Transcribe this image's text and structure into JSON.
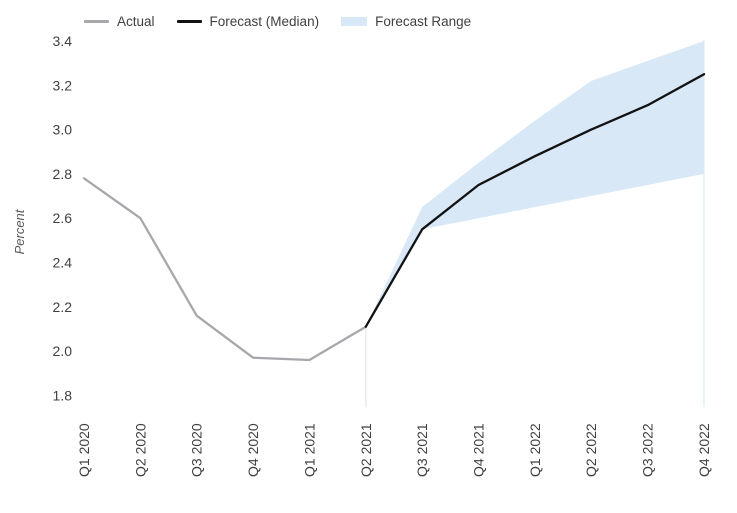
{
  "chart_data": {
    "type": "line",
    "title": "",
    "ylabel": "Percent",
    "categories": [
      "Q1 2020",
      "Q2 2020",
      "Q3 2020",
      "Q4 2020",
      "Q1 2021",
      "Q2 2021",
      "Q3 2021",
      "Q4 2021",
      "Q1 2022",
      "Q2 2022",
      "Q3 2022",
      "Q4 2022"
    ],
    "ylim": [
      1.8,
      3.4
    ],
    "yticks": [
      "1.8",
      "2.0",
      "2.2",
      "2.4",
      "2.6",
      "2.8",
      "3.0",
      "3.2",
      "3.4"
    ],
    "grid": "none",
    "forecast_start_index": 5,
    "series": [
      {
        "name": "Actual",
        "color": "#a6a8ab",
        "values": [
          2.78,
          2.6,
          2.16,
          1.97,
          1.96,
          2.11,
          null,
          null,
          null,
          null,
          null,
          null
        ]
      },
      {
        "name": "Forecast (Median)",
        "color": "#121212",
        "values": [
          null,
          null,
          null,
          null,
          null,
          2.11,
          2.55,
          2.75,
          2.88,
          3.0,
          3.11,
          3.25
        ]
      }
    ],
    "band": {
      "name": "Forecast Range",
      "color": "#d8e8f6",
      "upper": [
        null,
        null,
        null,
        null,
        null,
        2.11,
        2.65,
        2.85,
        3.04,
        3.22,
        3.31,
        3.4
      ],
      "lower": [
        null,
        null,
        null,
        null,
        null,
        2.11,
        2.55,
        2.6,
        2.65,
        2.7,
        2.75,
        2.8
      ]
    },
    "colors": {
      "tick_text": "#414042",
      "axis_label_text": "#58595b",
      "forecast_divider": "#e8e8e8",
      "right_guide": "#e3edf5"
    },
    "legend_position": "top-left"
  },
  "legend": {
    "items": [
      {
        "label": "Actual",
        "swatch": "line",
        "color": "#a6a8ab"
      },
      {
        "label": "Forecast (Median)",
        "swatch": "line",
        "color": "#121212"
      },
      {
        "label": "Forecast Range",
        "swatch": "rect",
        "color": "#d8e8f6"
      }
    ]
  }
}
